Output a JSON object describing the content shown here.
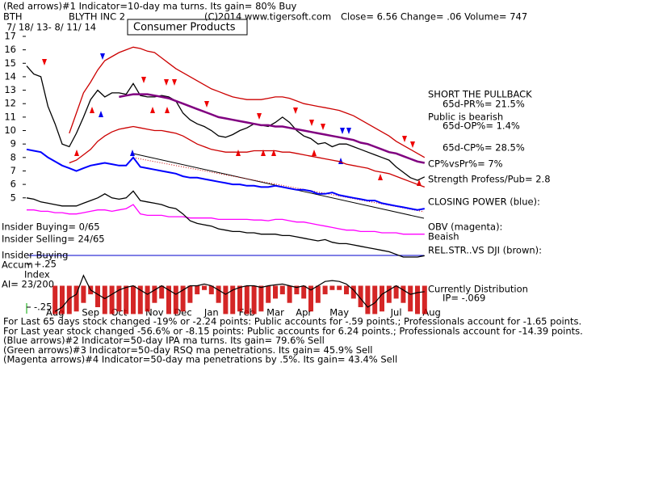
{
  "header": {
    "indicator": "(Red arrows)#1 Indicator=10-day ma turns. Its gain= 80% Buy",
    "symbol": "BTH",
    "company": "BLYTH INC 2",
    "copyright": "(C)2014 www.tigersoft.com",
    "quote": "Close=  6.56  Change= .06 Volume= 747",
    "date_range": "7/ 18/ 13-  8/ 11/ 14",
    "sector": "Consumer Products"
  },
  "right_panel": {
    "signal": "SHORT THE PULLBACK",
    "pr": "65d-PR%= 21.5%",
    "public": "Public is bearish",
    "op": "65d-OP%= 1.4%",
    "cp": "65d-CP%= 28.5%",
    "cp_vs_pr": "CP%vsPr%=  7%",
    "strength": "Strength Profess/Pub= 2.8",
    "closing_power": "CLOSING POWER (blue):",
    "obv": "OBV (magenta):",
    "obv_state": "Beaish",
    "rel_str": "REL.STR..VS DJI (brown):",
    "distribution": "Currently Distribution",
    "ip": "IP= -.069"
  },
  "left_panel": {
    "insider_buying": "Insider Buying= 0/65",
    "insider_selling": "Insider Selling= 24/65",
    "insider_label": "Insider Buying",
    "accum": "Accum",
    "index": "Index",
    "ai": "AI= 23/200"
  },
  "footer": [
    "For Last 65 days stock changed -19% or -2.24 points:  Public accounts for -.59 points.;  Professionals account for -1.65 points.",
    "For Last year stock changed -56.6% or -8.15 points:  Public accounts for  6.24 points.;  Professionals account for -14.39 points.",
    "(Blue arrows)#2 Indicator=50-day IPA ma turns. Its gain= 79.6% Sell",
    "(Green arrows)#3 Indicator=50-day RSQ ma penetrations. Its gain= 45.9% Sell",
    "(Magenta arrows)#4 Indicator=50-day ma penetrations by .5%. Its gain= 43.4% Sell"
  ],
  "chart_data": [
    {
      "type": "line",
      "categories": [
        null,
        null,
        null,
        null,
        "Aug",
        null,
        null,
        null,
        null,
        "Sep",
        null,
        null,
        null,
        "Oct",
        null,
        null,
        null,
        null,
        "Nov",
        null,
        null,
        null,
        "Dec",
        null,
        null,
        null,
        "Jan",
        null,
        null,
        null,
        null,
        "Feb",
        null,
        null,
        null,
        "Mar",
        null,
        null,
        null,
        "Apr",
        null,
        null,
        null,
        null,
        "May",
        null,
        null,
        null,
        null,
        null,
        null,
        null,
        "Jul",
        null,
        null,
        null,
        null,
        "Aug"
      ],
      "ylim": [
        0,
        17.6
      ],
      "yticks": [
        5,
        6,
        7,
        8,
        9,
        10,
        11,
        12,
        13,
        14,
        15,
        16,
        17
      ],
      "series": [
        {
          "color": "#000000",
          "values": [
            14.8,
            14.2,
            14,
            11.8,
            10.5,
            9,
            8.8,
            9.8,
            11,
            12.3,
            13,
            12.5,
            12.8,
            12.8,
            12.7,
            13.5,
            12.6,
            12.5,
            12.5,
            12.6,
            12.5,
            12.2,
            11.3,
            10.8,
            10.5,
            10.3,
            10,
            9.6,
            9.5,
            9.7,
            10,
            10.2,
            10.5,
            10.4,
            10.3,
            10.6,
            11,
            10.6,
            10,
            9.6,
            9.4,
            9,
            9.1,
            8.8,
            9,
            9,
            8.8,
            8.6,
            8.4,
            8.2,
            8,
            7.8,
            7.3,
            6.9,
            6.5,
            6.3,
            6.56,
            null
          ]
        },
        {
          "color": "#cc0000",
          "values": [
            null,
            null,
            null,
            null,
            null,
            null,
            9.8,
            11.3,
            12.8,
            13.6,
            14.5,
            15.2,
            15.5,
            15.8,
            16,
            16.2,
            16.1,
            15.9,
            15.8,
            15.4,
            15,
            14.6,
            14.3,
            14,
            13.7,
            13.4,
            13.1,
            12.9,
            12.7,
            12.5,
            12.4,
            12.3,
            12.3,
            12.3,
            12.4,
            12.5,
            12.5,
            12.4,
            12.2,
            12,
            11.9,
            11.8,
            11.7,
            11.6,
            11.5,
            11.3,
            11.1,
            10.8,
            10.5,
            10.2,
            9.9,
            9.6,
            9.2,
            8.9,
            8.6,
            8.3,
            8,
            null
          ]
        },
        {
          "color": "#cc0000",
          "values": [
            null,
            null,
            null,
            null,
            null,
            null,
            7.6,
            7.8,
            8.2,
            8.6,
            9.2,
            9.6,
            9.9,
            10.1,
            10.2,
            10.3,
            10.2,
            10.1,
            10,
            10,
            9.9,
            9.8,
            9.6,
            9.3,
            9,
            8.8,
            8.6,
            8.5,
            8.4,
            8.4,
            8.4,
            8.4,
            8.5,
            8.5,
            8.5,
            8.5,
            8.4,
            8.4,
            8.3,
            8.2,
            8.1,
            8,
            7.9,
            7.8,
            7.7,
            7.5,
            7.4,
            7.3,
            7.2,
            7,
            6.9,
            6.8,
            6.6,
            6.4,
            6.2,
            6,
            5.8,
            null
          ]
        },
        {
          "color": "#800080",
          "values": [
            null,
            null,
            null,
            null,
            null,
            null,
            null,
            null,
            null,
            null,
            null,
            null,
            null,
            12.5,
            12.6,
            12.7,
            12.7,
            12.7,
            12.6,
            12.5,
            12.4,
            12.2,
            12,
            11.8,
            11.6,
            11.4,
            11.2,
            11,
            10.9,
            10.8,
            10.7,
            10.6,
            10.5,
            10.4,
            10.4,
            10.3,
            10.3,
            10.2,
            10.1,
            10,
            9.9,
            9.8,
            9.7,
            9.6,
            9.5,
            9.4,
            9.3,
            9.1,
            9,
            8.8,
            8.6,
            8.4,
            8.3,
            8.1,
            7.9,
            7.7,
            7.6,
            null
          ]
        },
        {
          "color": "#0000ff",
          "values": [
            8.6,
            8.5,
            8.4,
            8,
            7.7,
            7.4,
            7.2,
            7,
            7.2,
            7.4,
            7.5,
            7.6,
            7.5,
            7.4,
            7.4,
            8,
            7.3,
            7.2,
            7.1,
            7,
            6.9,
            6.8,
            6.6,
            6.5,
            6.5,
            6.4,
            6.3,
            6.2,
            6.1,
            6,
            6,
            5.9,
            5.9,
            5.8,
            5.8,
            5.9,
            5.8,
            5.7,
            5.6,
            5.6,
            5.5,
            5.3,
            5.3,
            5.4,
            5.2,
            5.1,
            5,
            4.9,
            4.8,
            4.8,
            4.6,
            4.5,
            4.4,
            4.3,
            4.2,
            4.1,
            4.2,
            null
          ]
        },
        {
          "color": "#ff00ff",
          "values": [
            4.1,
            4.1,
            4,
            4,
            3.9,
            3.9,
            3.8,
            3.8,
            3.9,
            4,
            4.1,
            4.1,
            4,
            4.1,
            4.2,
            4.5,
            3.8,
            3.7,
            3.7,
            3.7,
            3.6,
            3.6,
            3.6,
            3.5,
            3.5,
            3.5,
            3.5,
            3.4,
            3.4,
            3.4,
            3.4,
            3.4,
            3.35,
            3.35,
            3.3,
            3.4,
            3.4,
            3.3,
            3.2,
            3.2,
            3.1,
            3,
            2.9,
            2.8,
            2.7,
            2.6,
            2.6,
            2.5,
            2.5,
            2.5,
            2.4,
            2.4,
            2.4,
            2.3,
            2.3,
            2.3,
            2.3,
            null
          ]
        },
        {
          "color": "#000000",
          "values": [
            5,
            4.9,
            4.7,
            4.6,
            4.5,
            4.4,
            4.4,
            4.4,
            4.6,
            4.8,
            5,
            5.3,
            5,
            4.9,
            5,
            5.5,
            4.8,
            4.7,
            4.6,
            4.5,
            4.3,
            4.2,
            3.8,
            3.3,
            3.1,
            3,
            2.9,
            2.7,
            2.6,
            2.5,
            2.5,
            2.4,
            2.4,
            2.3,
            2.3,
            2.3,
            2.2,
            2.2,
            2.1,
            2,
            1.9,
            1.8,
            1.9,
            1.7,
            1.6,
            1.6,
            1.5,
            1.4,
            1.3,
            1.2,
            1.1,
            1,
            0.8,
            0.6,
            0.6,
            0.6,
            0.7,
            null
          ]
        }
      ]
    },
    {
      "type": "bar",
      "ylim": [
        -0.33,
        0.31
      ],
      "yticks": [
        {
          "value": 0.25,
          "label": "+.25"
        },
        {
          "value": -0.25,
          "label": "-.25"
        }
      ],
      "color": "#cc0000",
      "values": [
        null,
        null,
        null,
        null,
        -0.33,
        -0.33,
        -0.33,
        -0.3,
        -0.2,
        -0.1,
        -0.25,
        -0.33,
        -0.33,
        -0.3,
        -0.33,
        -0.33,
        -0.33,
        -0.3,
        -0.2,
        -0.15,
        -0.33,
        -0.33,
        -0.3,
        -0.2,
        -0.1,
        -0.05,
        -0.1,
        -0.2,
        -0.33,
        -0.33,
        -0.3,
        -0.33,
        -0.33,
        -0.3,
        -0.2,
        -0.15,
        -0.1,
        -0.2,
        -0.1,
        -0.15,
        -0.3,
        -0.2,
        -0.1,
        -0.05,
        -0.05,
        -0.1,
        -0.15,
        -0.25,
        -0.33,
        -0.33,
        -0.3,
        -0.2,
        -0.15,
        -0.2,
        -0.3,
        -0.33,
        -0.33,
        null
      ],
      "line_color": "#000000",
      "line_values": [
        null,
        null,
        null,
        null,
        -0.3,
        -0.25,
        -0.15,
        -0.1,
        0.12,
        -0.05,
        -0.1,
        -0.15,
        -0.1,
        -0.05,
        -0.02,
        0,
        -0.05,
        -0.1,
        -0.05,
        0,
        -0.05,
        -0.1,
        -0.05,
        0,
        0,
        0.02,
        0,
        -0.05,
        -0.1,
        -0.05,
        -0.02,
        0,
        0,
        -0.02,
        0,
        0.01,
        0.02,
        0,
        -0.02,
        0,
        -0.05,
        0,
        0.05,
        0.06,
        0.05,
        0.02,
        -0.05,
        -0.15,
        -0.25,
        -0.2,
        -0.1,
        -0.05,
        0,
        -0.05,
        -0.1,
        -0.08,
        -0.069,
        null
      ]
    }
  ]
}
